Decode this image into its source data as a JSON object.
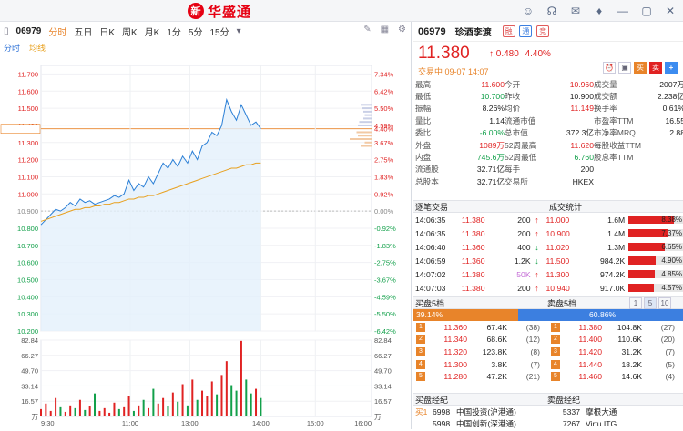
{
  "app": {
    "logo_mark": "新",
    "logo_text": "华盛通"
  },
  "titlebar_icons": [
    "user-icon",
    "headset-icon",
    "mail-icon",
    "shirt-icon",
    "minimize-icon",
    "maximize-icon",
    "close-icon"
  ],
  "chart": {
    "code": "06979",
    "periods": [
      "分时",
      "五日",
      "日K",
      "周K",
      "月K",
      "1分",
      "5分",
      "15分"
    ],
    "active_period": "分时",
    "sub": {
      "intraday": "分时",
      "avg": "均线"
    },
    "price_ticks": [
      "11.700",
      "11.600",
      "11.500",
      "11.400",
      "11.380",
      "11.300",
      "11.200",
      "11.100",
      "11.000",
      "10.900",
      "10.800",
      "10.700",
      "10.600",
      "10.500",
      "10.400",
      "10.300",
      "10.200"
    ],
    "pct_ticks": [
      "7.34%",
      "6.42%",
      "5.50%",
      "4.59%",
      "4.40%",
      "3.67%",
      "2.75%",
      "1.83%",
      "0.92%",
      "0.00%",
      "-0.92%",
      "-1.83%",
      "-2.75%",
      "-3.67%",
      "-4.59%",
      "-5.50%",
      "-6.42%"
    ],
    "vol_ticks": [
      "82.84",
      "66.27",
      "49.70",
      "33.14",
      "16.57",
      "万"
    ],
    "time_ticks": [
      "9:30",
      "11:00",
      "13:00",
      "14:00",
      "15:00",
      "16:00"
    ],
    "prev_close": 10.9
  },
  "chart_data": {
    "type": "line",
    "series": [
      {
        "name": "分时",
        "values": [
          10.82,
          10.85,
          10.88,
          10.91,
          10.9,
          10.92,
          10.95,
          10.93,
          10.97,
          10.95,
          10.96,
          10.94,
          10.95,
          10.96,
          10.97,
          10.99,
          10.98,
          11.0,
          11.08,
          11.02,
          11.06,
          11.04,
          11.1,
          11.06,
          11.12,
          11.18,
          11.15,
          11.2,
          11.16,
          11.22,
          11.18,
          11.25,
          11.2,
          11.28,
          11.3,
          11.36,
          11.34,
          11.4,
          11.55,
          11.48,
          11.43,
          11.52,
          11.46,
          11.4,
          11.42,
          11.38
        ]
      },
      {
        "name": "均线",
        "values": [
          10.84,
          10.85,
          10.86,
          10.87,
          10.88,
          10.89,
          10.9,
          10.91,
          10.91,
          10.92,
          10.92,
          10.93,
          10.93,
          10.94,
          10.94,
          10.95,
          10.95,
          10.96,
          10.97,
          10.97,
          10.98,
          10.98,
          10.99,
          10.99,
          11.0,
          11.01,
          11.02,
          11.03,
          11.04,
          11.05,
          11.06,
          11.07,
          11.08,
          11.09,
          11.1,
          11.11,
          11.12,
          11.13,
          11.14,
          11.15,
          11.15,
          11.16,
          11.17,
          11.17,
          11.18,
          11.18
        ]
      }
    ],
    "volume": [
      8,
      14,
      6,
      20,
      10,
      5,
      12,
      9,
      18,
      7,
      11,
      25,
      6,
      9,
      4,
      15,
      8,
      10,
      22,
      6,
      12,
      18,
      9,
      30,
      14,
      20,
      11,
      26,
      16,
      35,
      12,
      40,
      18,
      28,
      22,
      38,
      24,
      45,
      60,
      34,
      28,
      82,
      40,
      25,
      30,
      20
    ],
    "ylim": [
      10.2,
      11.75
    ]
  },
  "quote": {
    "code": "06979",
    "name": "珍酒李渡",
    "tags": [
      "融",
      "通",
      "竞"
    ],
    "price": "11.380",
    "change": "0.480",
    "change_pct": "4.40%",
    "status": "交易中 09-07 14:07",
    "action_buttons": [
      "买",
      "卖",
      "+"
    ],
    "rows": [
      [
        {
          "l": "最高",
          "v": "11.600",
          "c": "red"
        },
        {
          "l": "今开",
          "v": "10.960",
          "c": "red"
        },
        {
          "l": "成交量",
          "v": "2007万",
          "c": "blk"
        }
      ],
      [
        {
          "l": "最低",
          "v": "10.700",
          "c": "green"
        },
        {
          "l": "昨收",
          "v": "10.900",
          "c": "blk"
        },
        {
          "l": "成交额",
          "v": "2.238亿",
          "c": "blk"
        }
      ],
      [
        {
          "l": "振幅",
          "v": "8.26%",
          "c": "blk"
        },
        {
          "l": "均价",
          "v": "11.149",
          "c": "red"
        },
        {
          "l": "换手率",
          "v": "0.61%",
          "c": "blk"
        }
      ],
      [
        {
          "l": "量比",
          "v": "1.14",
          "c": "blk"
        },
        {
          "l": "流通市值",
          "v": "",
          "c": "blk"
        },
        {
          "l": "市盈率TTM",
          "v": "16.55",
          "c": "blk"
        }
      ],
      [
        {
          "l": "委比",
          "v": "-6.00%",
          "c": "green"
        },
        {
          "l": "总市值",
          "v": "372.3亿",
          "c": "blk"
        },
        {
          "l": "市净率MRQ",
          "v": "2.88",
          "c": "blk"
        }
      ],
      [
        {
          "l": "外盘",
          "v": "1089万",
          "c": "red"
        },
        {
          "l": "52周最高",
          "v": "11.620",
          "c": "red"
        },
        {
          "l": "每股收益TTM",
          "v": "",
          "c": "blk"
        }
      ],
      [
        {
          "l": "内盘",
          "v": "745.6万",
          "c": "green"
        },
        {
          "l": "52周最低",
          "v": "6.760",
          "c": "green"
        },
        {
          "l": "股息率TTM",
          "v": "",
          "c": "blk"
        }
      ],
      [
        {
          "l": "流通股",
          "v": "32.71亿",
          "c": "blk"
        },
        {
          "l": "每手",
          "v": "200",
          "c": "blk"
        },
        {
          "l": "",
          "v": "",
          "c": "blk"
        }
      ],
      [
        {
          "l": "总股本",
          "v": "32.71亿",
          "c": "blk"
        },
        {
          "l": "交易所",
          "v": "HKEX",
          "c": "blk"
        },
        {
          "l": "",
          "v": "",
          "c": "blk"
        }
      ]
    ]
  },
  "trades": {
    "title": "逐笔交易",
    "stats_title": "成交统计",
    "rows": [
      {
        "t": "14:06:35",
        "p": "11.380",
        "v": "200",
        "dir": "up",
        "sp": "11.000",
        "sv": "1.6M",
        "pct": "8.38%",
        "w": 0.84
      },
      {
        "t": "14:06:35",
        "p": "11.380",
        "v": "200",
        "dir": "up",
        "sp": "10.900",
        "sv": "1.4M",
        "pct": "7.37%",
        "w": 0.74
      },
      {
        "t": "14:06:40",
        "p": "11.360",
        "v": "400",
        "dir": "down",
        "sp": "11.020",
        "sv": "1.3M",
        "pct": "6.65%",
        "w": 0.67
      },
      {
        "t": "14:06:59",
        "p": "11.360",
        "v": "1.2K",
        "dir": "down",
        "sp": "11.500",
        "sv": "984.2K",
        "pct": "4.90%",
        "w": 0.49
      },
      {
        "t": "14:07:02",
        "p": "11.380",
        "v": "50K",
        "dir": "up",
        "sp": "11.300",
        "sv": "974.2K",
        "pct": "4.85%",
        "w": 0.48
      },
      {
        "t": "14:07:03",
        "p": "11.380",
        "v": "200",
        "dir": "up",
        "sp": "10.940",
        "sv": "917.0K",
        "pct": "4.57%",
        "w": 0.46
      }
    ]
  },
  "book": {
    "bid_title": "买盘5档",
    "ask_title": "卖盘5档",
    "levels": [
      "1",
      "5",
      "10"
    ],
    "bid_ratio": "39.14%",
    "ask_ratio": "60.86%",
    "bid_ratio_value": 0.3914,
    "bids": [
      {
        "n": "1",
        "p": "11.360",
        "v": "67.4K",
        "c": "(38)"
      },
      {
        "n": "2",
        "p": "11.340",
        "v": "68.6K",
        "c": "(12)"
      },
      {
        "n": "3",
        "p": "11.320",
        "v": "123.8K",
        "c": "(8)"
      },
      {
        "n": "4",
        "p": "11.300",
        "v": "3.8K",
        "c": "(7)"
      },
      {
        "n": "5",
        "p": "11.280",
        "v": "47.2K",
        "c": "(21)"
      }
    ],
    "asks": [
      {
        "n": "1",
        "p": "11.380",
        "v": "104.8K",
        "c": "(27)"
      },
      {
        "n": "2",
        "p": "11.400",
        "v": "110.6K",
        "c": "(20)"
      },
      {
        "n": "3",
        "p": "11.420",
        "v": "31.2K",
        "c": "(7)"
      },
      {
        "n": "4",
        "p": "11.440",
        "v": "18.2K",
        "c": "(5)"
      },
      {
        "n": "5",
        "p": "11.460",
        "v": "14.6K",
        "c": "(4)"
      }
    ]
  },
  "brokers": {
    "bid_title": "买盘经纪",
    "ask_title": "卖盘经纪",
    "rows": [
      {
        "bl": "买1",
        "bc": "6998",
        "bn": "中国投资(沪港通)",
        "sc": "5337",
        "sn": "摩根大通"
      },
      {
        "bl": "",
        "bc": "5998",
        "bn": "中国创新(深港通)",
        "sc": "7267",
        "sn": "Virtu ITG"
      }
    ]
  },
  "colors": {
    "up": "#e02222",
    "down": "#12a04a",
    "accent": "#e8842a",
    "line": "#2a7fd6",
    "avg": "#e8a01e"
  }
}
